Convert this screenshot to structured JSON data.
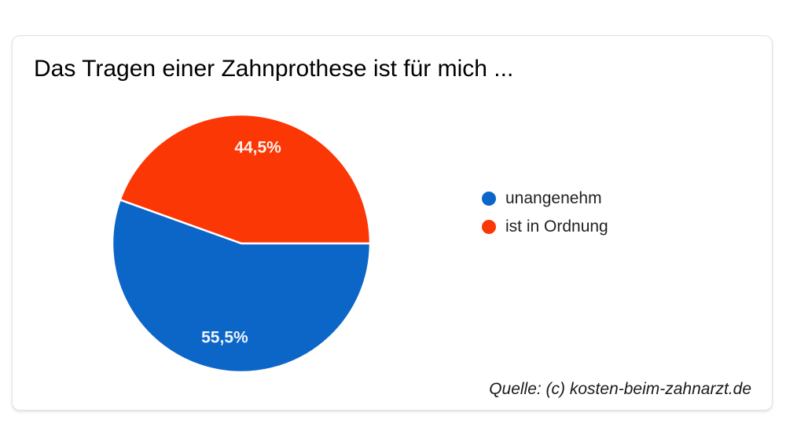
{
  "page": {
    "background_color": "#ffffff",
    "card_border_color": "#e0e0e0"
  },
  "chart_data": {
    "type": "pie",
    "title": "Das Tragen einer Zahnprothese ist für mich ...",
    "slices": [
      {
        "label": "unangenehm",
        "value": 55.5,
        "display": "55,5%",
        "color": "#0c66c8"
      },
      {
        "label": "ist in Ordnung",
        "value": 44.5,
        "display": "44,5%",
        "color": "#fb3705"
      }
    ],
    "start_angle_deg": 0,
    "direction": "clockwise",
    "legend_position": "right",
    "slice_label_color": "#ffffff",
    "slice_border_color": "#ffffff",
    "source": "Quelle: (c) kosten-beim-zahnarzt.de"
  }
}
